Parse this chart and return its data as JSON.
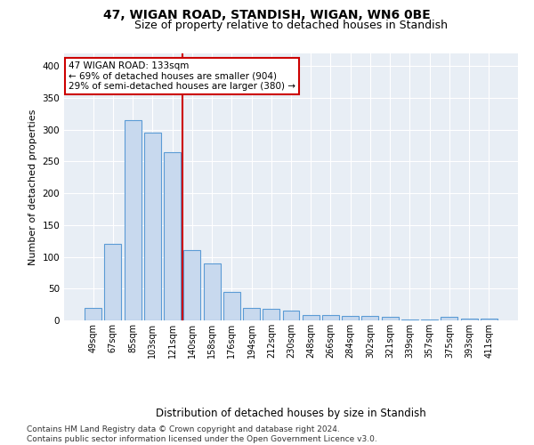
{
  "title": "47, WIGAN ROAD, STANDISH, WIGAN, WN6 0BE",
  "subtitle": "Size of property relative to detached houses in Standish",
  "xlabel_bottom": "Distribution of detached houses by size in Standish",
  "ylabel": "Number of detached properties",
  "bar_color": "#c8d9ee",
  "bar_edge_color": "#5b9bd5",
  "bg_color": "#e8eef5",
  "grid_color": "#ffffff",
  "categories": [
    "49sqm",
    "67sqm",
    "85sqm",
    "103sqm",
    "121sqm",
    "140sqm",
    "158sqm",
    "176sqm",
    "194sqm",
    "212sqm",
    "230sqm",
    "248sqm",
    "266sqm",
    "284sqm",
    "302sqm",
    "321sqm",
    "339sqm",
    "357sqm",
    "375sqm",
    "393sqm",
    "411sqm"
  ],
  "values": [
    20,
    120,
    315,
    295,
    265,
    110,
    90,
    45,
    20,
    18,
    15,
    9,
    8,
    7,
    7,
    5,
    2,
    2,
    5,
    3,
    3
  ],
  "vline_index": 4.5,
  "annotation_line1": "47 WIGAN ROAD: 133sqm",
  "annotation_line2": "← 69% of detached houses are smaller (904)",
  "annotation_line3": "29% of semi-detached houses are larger (380) →",
  "vline_color": "#cc0000",
  "annotation_box_color": "#cc0000",
  "ylim": [
    0,
    420
  ],
  "yticks": [
    0,
    50,
    100,
    150,
    200,
    250,
    300,
    350,
    400
  ],
  "footnote_line1": "Contains HM Land Registry data © Crown copyright and database right 2024.",
  "footnote_line2": "Contains public sector information licensed under the Open Government Licence v3.0.",
  "title_fontsize": 10,
  "subtitle_fontsize": 9,
  "tick_fontsize": 7,
  "ylabel_fontsize": 8,
  "annotation_fontsize": 7.5,
  "xlabel_fontsize": 8.5,
  "footnote_fontsize": 6.5
}
